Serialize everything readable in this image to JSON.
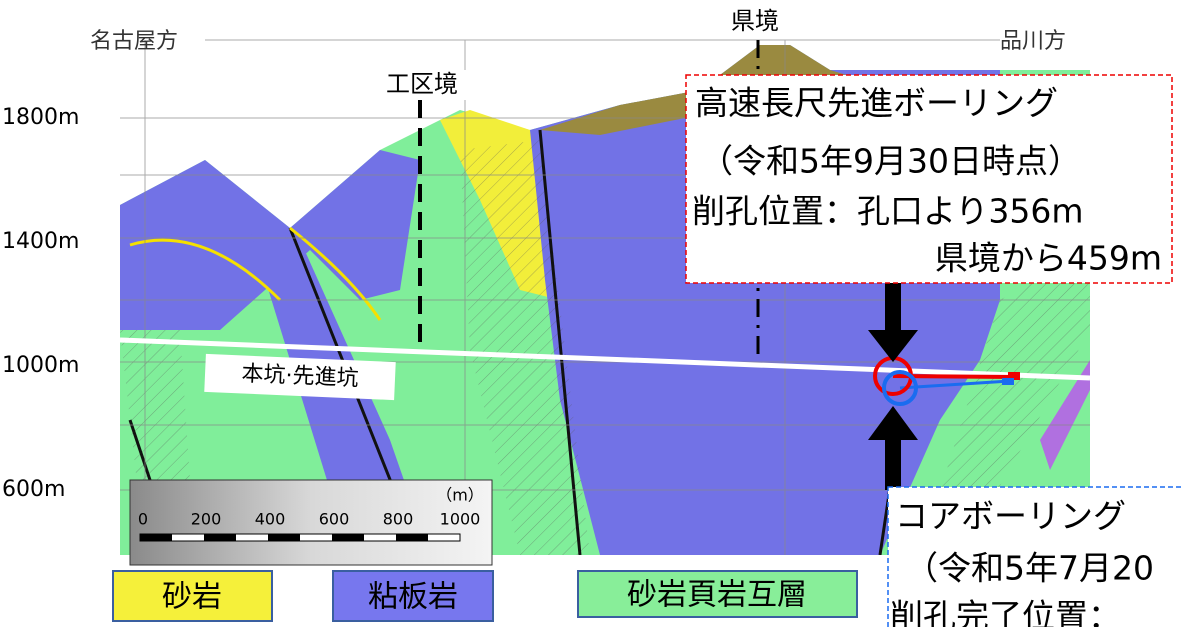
{
  "header": {
    "left_direction": "名古屋方",
    "border_label": "県境",
    "right_direction": "品川方",
    "section_border": "工区境"
  },
  "elevations": [
    "1800m",
    "1400m",
    "1000m",
    "600m"
  ],
  "tunnel_label": "本坑·先進坑",
  "callout_top": {
    "title": "高速長尺先進ボーリング",
    "date": "（令和5年9月30日時点）",
    "position": "削孔位置：孔口より356m",
    "from_border": "県境から459m"
  },
  "callout_bottom": {
    "title": "コアボーリング",
    "date": "（令和5年7月20",
    "position": "削孔完了位置："
  },
  "scale": {
    "unit": "（m）",
    "labels": [
      "0",
      "200",
      "400",
      "600",
      "800",
      "1000"
    ]
  },
  "legend": [
    "砂岩",
    "粘板岩",
    "砂岩頁岩互層"
  ]
}
